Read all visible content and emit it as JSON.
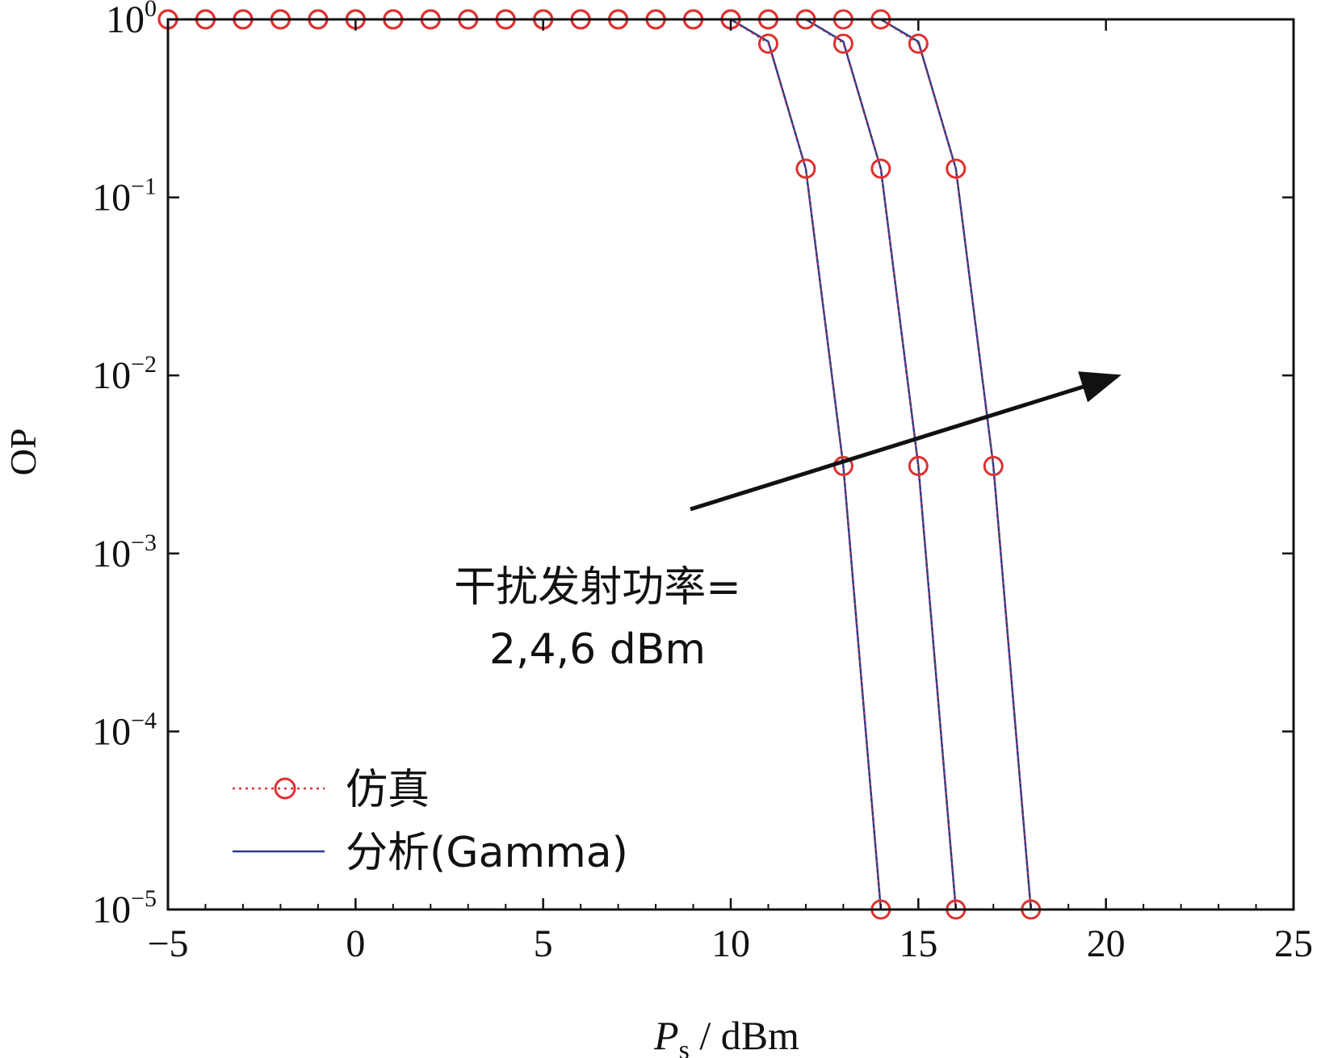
{
  "chart_data": {
    "type": "line",
    "ylabel": "OP",
    "xlabel": {
      "main": "P",
      "sub": "s",
      "suffix": " / dBm"
    },
    "xlim": [
      -5,
      25
    ],
    "ylim": [
      1e-05,
      1
    ],
    "y_scale": "log",
    "x_ticks": [
      -5,
      0,
      5,
      10,
      15,
      20,
      25
    ],
    "x_tick_labels": [
      "−5",
      "0",
      "5",
      "10",
      "15",
      "20",
      "25"
    ],
    "y_ticks": [
      {
        "value": 1,
        "base": "10",
        "exp": "0"
      },
      {
        "value": 0.1,
        "base": "10",
        "exp": "−1"
      },
      {
        "value": 0.01,
        "base": "10",
        "exp": "−2"
      },
      {
        "value": 0.001,
        "base": "10",
        "exp": "−3"
      },
      {
        "value": 0.0001,
        "base": "10",
        "exp": "−4"
      },
      {
        "value": 1e-05,
        "base": "10",
        "exp": "−5"
      }
    ],
    "grid": false,
    "legend": {
      "position": "bottom-left",
      "entries": [
        {
          "label": "仿真",
          "style": "red-dotted-circle"
        },
        {
          "label": "分析(Gamma)",
          "style": "blue-solid"
        }
      ]
    },
    "annotation": {
      "line1": "干扰发射功率=",
      "line2": "2,4,6 dBm",
      "arrow": "toward increasing interference power"
    },
    "series": [
      {
        "x": [
          -5,
          -4,
          -3,
          -2,
          -1,
          0,
          1,
          2,
          3,
          4,
          5,
          6,
          7,
          8,
          9,
          10,
          11,
          12,
          13,
          14
        ],
        "simulation": [
          1,
          1,
          1,
          1,
          1,
          1,
          1,
          1,
          1,
          1,
          1,
          1,
          1,
          1,
          1,
          1,
          0.73,
          0.145,
          0.0031,
          1e-05
        ],
        "analysis": [
          1,
          1,
          1,
          1,
          1,
          1,
          1,
          1,
          1,
          1,
          1,
          1,
          1,
          1,
          1,
          1,
          0.75,
          0.145,
          0.0031,
          1e-05
        ]
      },
      {
        "x": [
          -5,
          -4,
          -3,
          -2,
          -1,
          0,
          1,
          2,
          3,
          4,
          5,
          6,
          7,
          8,
          9,
          10,
          11,
          12,
          13,
          14,
          15,
          16
        ],
        "simulation": [
          1,
          1,
          1,
          1,
          1,
          1,
          1,
          1,
          1,
          1,
          1,
          1,
          1,
          1,
          1,
          1,
          1,
          1,
          0.73,
          0.145,
          0.0031,
          1e-05
        ],
        "analysis": [
          1,
          1,
          1,
          1,
          1,
          1,
          1,
          1,
          1,
          1,
          1,
          1,
          1,
          1,
          1,
          1,
          1,
          1,
          0.75,
          0.145,
          0.0031,
          1e-05
        ]
      },
      {
        "x": [
          -5,
          -4,
          -3,
          -2,
          -1,
          0,
          1,
          2,
          3,
          4,
          5,
          6,
          7,
          8,
          9,
          10,
          11,
          12,
          13,
          14,
          15,
          16,
          17,
          18
        ],
        "simulation": [
          1,
          1,
          1,
          1,
          1,
          1,
          1,
          1,
          1,
          1,
          1,
          1,
          1,
          1,
          1,
          1,
          1,
          1,
          1,
          1,
          0.73,
          0.145,
          0.0031,
          1e-05
        ],
        "analysis": [
          1,
          1,
          1,
          1,
          1,
          1,
          1,
          1,
          1,
          1,
          1,
          1,
          1,
          1,
          1,
          1,
          1,
          1,
          1,
          1,
          0.75,
          0.145,
          0.0031,
          1e-05
        ]
      }
    ],
    "colors": {
      "simulation": "#e03030",
      "analysis": "#2b3a8c",
      "axis": "#111111",
      "arrow": "#111111"
    }
  }
}
